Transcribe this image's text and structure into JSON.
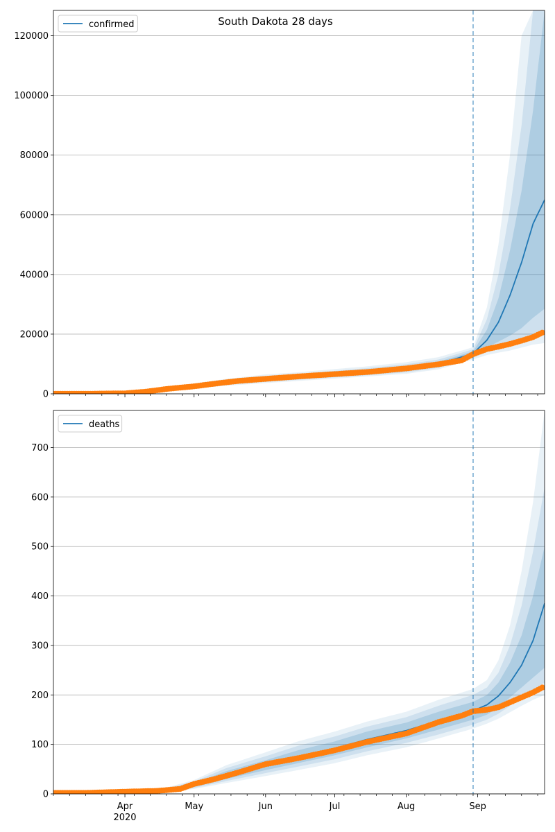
{
  "figure": {
    "title": "South Dakota 28 days"
  },
  "colors": {
    "model": "#1f77b4",
    "observed": "#ff7f0e",
    "grid": "#b0b0b0",
    "band": "#1f77b4",
    "forecast_line": "#1f77b4"
  },
  "x_axis": {
    "start_date": "2020-03-01",
    "end_date": "2020-09-30",
    "month_ticks": [
      {
        "date": "2020-04-01",
        "label": "Apr",
        "sublabel": "2020"
      },
      {
        "date": "2020-05-01",
        "label": "May",
        "sublabel": ""
      },
      {
        "date": "2020-06-01",
        "label": "Jun",
        "sublabel": ""
      },
      {
        "date": "2020-07-01",
        "label": "Jul",
        "sublabel": ""
      },
      {
        "date": "2020-08-01",
        "label": "Aug",
        "sublabel": ""
      },
      {
        "date": "2020-09-01",
        "label": "Sep",
        "sublabel": ""
      }
    ],
    "forecast_start": "2020-08-30"
  },
  "chart_data": [
    {
      "type": "line",
      "legend": "confirmed",
      "legend_position": "top-left",
      "grid": "horizontal",
      "ylim": [
        0,
        128500
      ],
      "yticks": [
        0,
        20000,
        40000,
        60000,
        80000,
        100000,
        120000
      ],
      "model": {
        "dates": [
          "2020-03-01",
          "2020-03-20",
          "2020-04-05",
          "2020-04-20",
          "2020-05-01",
          "2020-05-15",
          "2020-06-01",
          "2020-06-15",
          "2020-07-01",
          "2020-07-15",
          "2020-08-01",
          "2020-08-15",
          "2020-08-30",
          "2020-09-05",
          "2020-09-10",
          "2020-09-15",
          "2020-09-20",
          "2020-09-25",
          "2020-09-30"
        ],
        "values": [
          0,
          50,
          400,
          1600,
          2600,
          3800,
          5000,
          5700,
          6600,
          7400,
          8500,
          10000,
          13500,
          18000,
          24000,
          33000,
          44000,
          57000,
          65000
        ],
        "bands": [
          {
            "lower": [
              0,
              40,
              330,
              1350,
              2300,
              3400,
              4500,
              5200,
              6000,
              6800,
              7800,
              9300,
              12800,
              15500,
              17500,
              19500,
              22000,
              25500,
              28500
            ],
            "upper": [
              0,
              60,
              470,
              1850,
              2900,
              4200,
              5500,
              6200,
              7200,
              8000,
              9200,
              10800,
              14200,
              21500,
              32000,
              48000,
              68000,
              95000,
              128500
            ]
          },
          {
            "lower": [
              0,
              30,
              270,
              1150,
              2000,
              3000,
              4000,
              4700,
              5500,
              6200,
              7200,
              8700,
              12100,
              14000,
              15000,
              16000,
              17500,
              19000,
              20000
            ],
            "upper": [
              0,
              70,
              540,
              2100,
              3200,
              4600,
              6000,
              6700,
              7700,
              8600,
              9900,
              11500,
              14900,
              25000,
              40000,
              62000,
              90000,
              128500,
              128500
            ]
          },
          {
            "lower": [
              0,
              25,
              230,
              1000,
              1800,
              2700,
              3600,
              4300,
              5100,
              5800,
              6700,
              8200,
              11500,
              13000,
              13800,
              14500,
              15500,
              16500,
              17000
            ],
            "upper": [
              0,
              80,
              600,
              2300,
              3500,
              5000,
              6500,
              7200,
              8300,
              9200,
              10600,
              12300,
              15600,
              29000,
              50000,
              80000,
              120000,
              128500,
              128500
            ]
          }
        ]
      },
      "observed": {
        "dates": [
          "2020-03-01",
          "2020-03-15",
          "2020-04-01",
          "2020-04-10",
          "2020-04-20",
          "2020-05-01",
          "2020-05-10",
          "2020-05-20",
          "2020-06-01",
          "2020-06-15",
          "2020-07-01",
          "2020-07-15",
          "2020-08-01",
          "2020-08-15",
          "2020-08-25",
          "2020-08-30",
          "2020-09-05",
          "2020-09-10",
          "2020-09-15",
          "2020-09-20",
          "2020-09-25",
          "2020-09-29"
        ],
        "values": [
          0,
          10,
          150,
          700,
          1700,
          2500,
          3400,
          4300,
          5000,
          5800,
          6600,
          7300,
          8500,
          9900,
          11200,
          13300,
          15000,
          15800,
          16700,
          17800,
          19000,
          20500
        ]
      }
    },
    {
      "type": "line",
      "legend": "deaths",
      "legend_position": "top-left",
      "grid": "horizontal",
      "ylim": [
        0,
        775
      ],
      "yticks": [
        0,
        100,
        200,
        300,
        400,
        500,
        600,
        700
      ],
      "model": {
        "dates": [
          "2020-03-01",
          "2020-03-20",
          "2020-04-05",
          "2020-04-20",
          "2020-05-01",
          "2020-05-15",
          "2020-06-01",
          "2020-06-15",
          "2020-07-01",
          "2020-07-15",
          "2020-08-01",
          "2020-08-15",
          "2020-08-30",
          "2020-09-05",
          "2020-09-10",
          "2020-09-15",
          "2020-09-20",
          "2020-09-25",
          "2020-09-30"
        ],
        "values": [
          0,
          0,
          3,
          8,
          18,
          38,
          58,
          75,
          92,
          110,
          128,
          148,
          168,
          180,
          198,
          225,
          260,
          310,
          385
        ],
        "bands": [
          {
            "lower": [
              0,
              0,
              2,
              6,
              14,
              30,
              48,
              62,
              78,
              94,
              112,
              130,
              150,
              160,
              175,
              195,
              215,
              235,
              255
            ],
            "upper": [
              0,
              0,
              4,
              10,
              22,
              46,
              68,
              88,
              106,
              126,
              144,
              166,
              186,
              200,
              225,
              265,
              320,
              400,
              500
            ]
          },
          {
            "lower": [
              0,
              0,
              1,
              5,
              12,
              26,
              42,
              55,
              70,
              86,
              103,
              120,
              140,
              150,
              162,
              178,
              195,
              210,
              225
            ],
            "upper": [
              0,
              0,
              5,
              12,
              25,
              52,
              76,
              97,
              116,
              136,
              155,
              178,
              200,
              215,
              245,
              300,
              380,
              490,
              620
            ]
          },
          {
            "lower": [
              0,
              0,
              1,
              4,
              10,
              22,
              36,
              48,
              62,
              78,
              94,
              112,
              132,
              142,
              152,
              165,
              178,
              190,
              200
            ],
            "upper": [
              0,
              0,
              6,
              14,
              28,
              58,
              84,
              106,
              126,
              146,
              166,
              190,
              212,
              230,
              270,
              340,
              450,
              590,
              775
            ]
          }
        ]
      },
      "observed": {
        "dates": [
          "2020-03-01",
          "2020-03-15",
          "2020-04-06",
          "2020-04-15",
          "2020-04-25",
          "2020-05-01",
          "2020-05-10",
          "2020-05-20",
          "2020-06-01",
          "2020-06-15",
          "2020-07-01",
          "2020-07-15",
          "2020-08-01",
          "2020-08-15",
          "2020-08-25",
          "2020-08-30",
          "2020-09-05",
          "2020-09-10",
          "2020-09-15",
          "2020-09-20",
          "2020-09-25",
          "2020-09-29"
        ],
        "values": [
          2,
          2,
          5,
          6,
          10,
          20,
          30,
          43,
          60,
          72,
          88,
          105,
          122,
          145,
          158,
          167,
          170,
          175,
          185,
          195,
          205,
          215
        ]
      }
    }
  ]
}
